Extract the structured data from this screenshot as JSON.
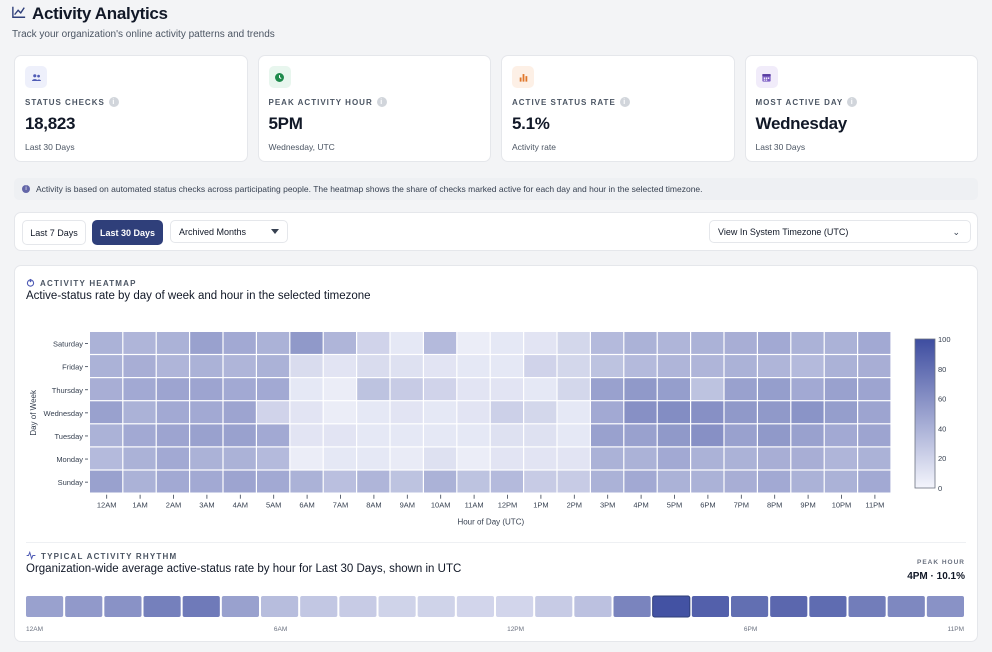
{
  "header": {
    "title": "Activity Analytics",
    "subtitle": "Track your organization's online activity patterns and trends"
  },
  "cards": [
    {
      "label": "STATUS CHECKS",
      "value": "18,823",
      "sub": "Last 30 Days",
      "icon": "users-icon",
      "bg": "#eef0fb",
      "fg": "#4f5bb5"
    },
    {
      "label": "PEAK ACTIVITY HOUR",
      "value": "5PM",
      "sub": "Wednesday, UTC",
      "icon": "clock-icon",
      "bg": "#e8f6ee",
      "fg": "#1f8a4c"
    },
    {
      "label": "ACTIVE STATUS RATE",
      "value": "5.1%",
      "sub": "Activity rate",
      "icon": "bar-chart-icon",
      "bg": "#fdf0e6",
      "fg": "#e0762a"
    },
    {
      "label": "MOST ACTIVE DAY",
      "value": "Wednesday",
      "sub": "Last 30 Days",
      "icon": "calendar-icon",
      "bg": "#f1ecfa",
      "fg": "#7b5cc4"
    }
  ],
  "note": "Activity is based on automated status checks across participating people. The heatmap shows the share of checks marked active for each day and hour in the selected timezone.",
  "controls": {
    "ranges": [
      "Last 7 Days",
      "Last 30 Days"
    ],
    "archived": "Archived Months",
    "timezone": "View In System Timezone (UTC)"
  },
  "heatmap": {
    "kicker": "ACTIVITY HEATMAP",
    "title": "Active-status rate by day of week and hour in the selected timezone",
    "ylabel": "Day of Week",
    "xlabel": "Hour of Day (UTC)",
    "colorbar_ticks": [
      "100",
      "80",
      "60",
      "40",
      "20",
      "0"
    ]
  },
  "rhythm": {
    "kicker": "TYPICAL ACTIVITY RHYTHM",
    "title": "Organization-wide average active-status rate by hour for Last 30 Days, shown in UTC",
    "peak_label": "PEAK HOUR",
    "peak_value": "4PM · 10.1%",
    "tick_labels": [
      "12AM",
      "6AM",
      "12PM",
      "6PM",
      "11PM"
    ]
  },
  "chart_data": [
    {
      "type": "heatmap",
      "title": "Active-status rate by day of week and hour in the selected timezone",
      "xlabel": "Hour of Day (UTC)",
      "ylabel": "Day of Week",
      "x": [
        "12AM",
        "1AM",
        "2AM",
        "3AM",
        "4AM",
        "5AM",
        "6AM",
        "7AM",
        "8AM",
        "9AM",
        "10AM",
        "11AM",
        "12PM",
        "1PM",
        "2PM",
        "3PM",
        "4PM",
        "5PM",
        "6PM",
        "7PM",
        "8PM",
        "9PM",
        "10PM",
        "11PM"
      ],
      "y": [
        "Saturday",
        "Friday",
        "Thursday",
        "Wednesday",
        "Tuesday",
        "Monday",
        "Sunday"
      ],
      "color_range": [
        0,
        100
      ],
      "values": [
        [
          40,
          38,
          40,
          50,
          45,
          40,
          55,
          38,
          20,
          8,
          35,
          5,
          8,
          10,
          18,
          35,
          40,
          38,
          40,
          42,
          45,
          40,
          40,
          45
        ],
        [
          40,
          42,
          38,
          40,
          38,
          40,
          15,
          10,
          15,
          12,
          10,
          8,
          8,
          20,
          18,
          30,
          35,
          38,
          38,
          40,
          38,
          35,
          40,
          42
        ],
        [
          42,
          45,
          48,
          48,
          45,
          45,
          8,
          5,
          30,
          25,
          20,
          10,
          10,
          8,
          18,
          50,
          55,
          52,
          30,
          50,
          52,
          45,
          50,
          48
        ],
        [
          50,
          40,
          45,
          45,
          48,
          20,
          10,
          5,
          8,
          10,
          8,
          10,
          22,
          18,
          8,
          45,
          60,
          62,
          60,
          55,
          55,
          58,
          52,
          48
        ],
        [
          40,
          45,
          48,
          50,
          50,
          45,
          10,
          10,
          8,
          8,
          8,
          8,
          12,
          12,
          8,
          50,
          50,
          55,
          60,
          50,
          55,
          50,
          45,
          48
        ],
        [
          35,
          40,
          45,
          40,
          40,
          35,
          5,
          8,
          8,
          6,
          12,
          5,
          10,
          10,
          10,
          40,
          40,
          45,
          40,
          40,
          42,
          42,
          38,
          40
        ],
        [
          50,
          40,
          45,
          45,
          48,
          45,
          40,
          32,
          38,
          30,
          40,
          30,
          35,
          25,
          25,
          40,
          45,
          40,
          40,
          42,
          45,
          40,
          40,
          45
        ]
      ]
    },
    {
      "type": "heatmap",
      "title": "Organization-wide average active-status rate by hour for Last 30 Days, shown in UTC",
      "x": [
        "12AM",
        "1AM",
        "2AM",
        "3AM",
        "4AM",
        "5AM",
        "6AM",
        "7AM",
        "8AM",
        "9AM",
        "10AM",
        "11AM",
        "12PM",
        "1PM",
        "2PM",
        "3PM",
        "4PM",
        "5PM",
        "6PM",
        "7PM",
        "8PM",
        "9PM",
        "10PM",
        "11PM"
      ],
      "values": [
        45,
        50,
        55,
        68,
        72,
        45,
        25,
        18,
        15,
        10,
        10,
        8,
        8,
        15,
        22,
        65,
        100,
        90,
        80,
        85,
        82,
        70,
        62,
        55
      ],
      "peak": {
        "hour": "4PM",
        "rate_percent": 10.1
      }
    }
  ]
}
